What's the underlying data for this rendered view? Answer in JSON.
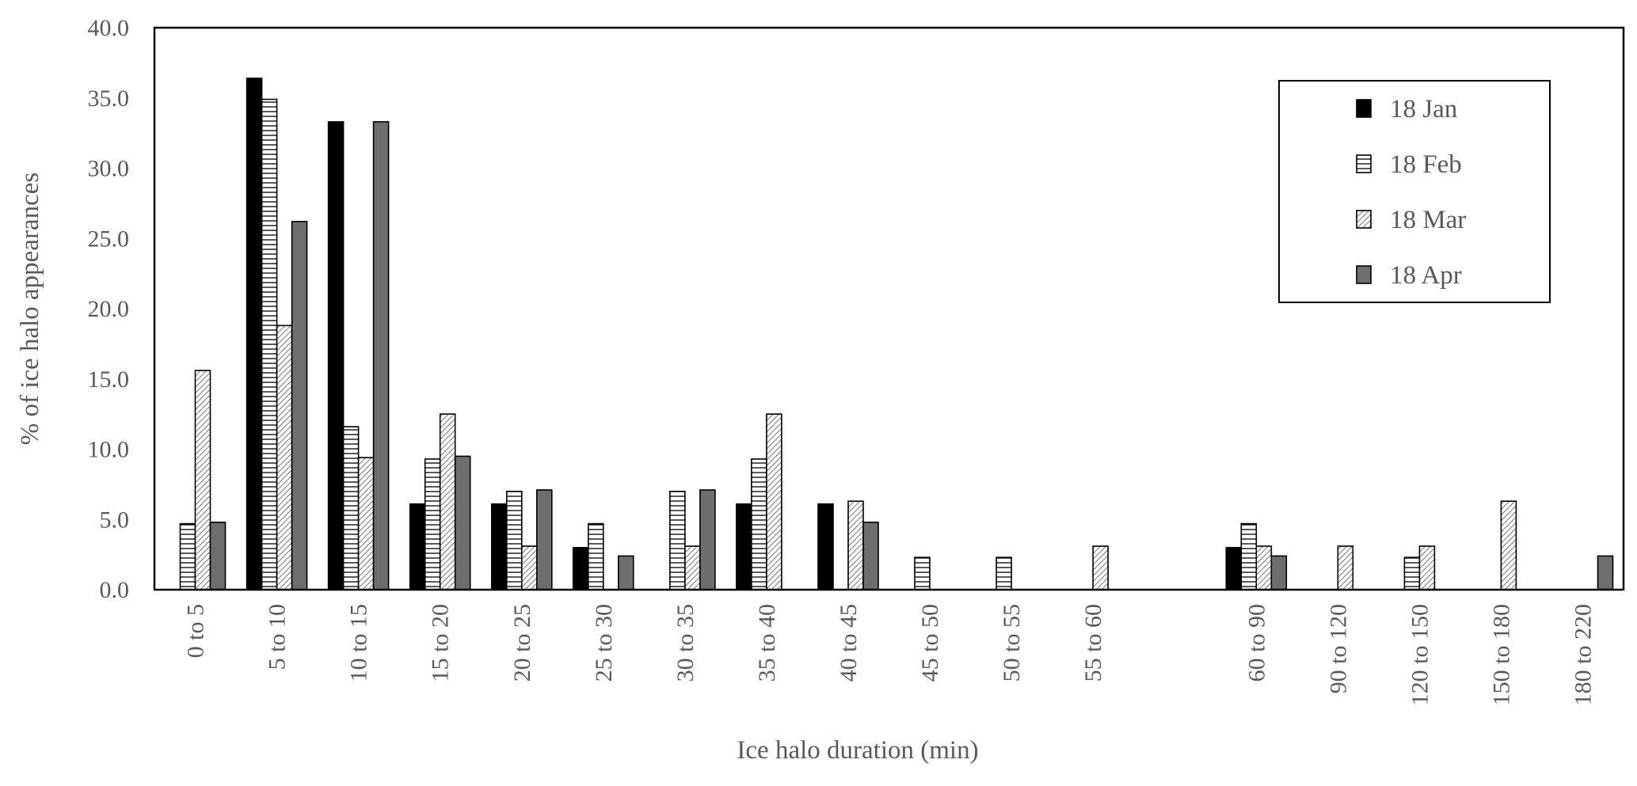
{
  "chart_data": {
    "type": "bar",
    "title": "",
    "xlabel": "Ice halo duration (min)",
    "ylabel": "% of ice halo appearances",
    "ylim": [
      0,
      40
    ],
    "ytick_labels": [
      "0.0",
      "5.0",
      "10.0",
      "15.0",
      "20.0",
      "25.0",
      "30.0",
      "35.0",
      "40.0"
    ],
    "grid": false,
    "legend_position": "top-right",
    "categories": [
      "0 to 5",
      "5 to 10",
      "10 to 15",
      "15 to 20",
      "20 to 25",
      "25 to 30",
      "30 to 35",
      "35 to 40",
      "40 to 45",
      "45 to 50",
      "50 to 55",
      "55 to 60",
      "",
      "60 to 90",
      "90 to 120",
      "120 to 150",
      "150 to 180",
      "180 to 220"
    ],
    "series": [
      {
        "name": "18 Jan",
        "pattern": "solid-black",
        "color": "#000000",
        "values": [
          0,
          36.4,
          33.3,
          6.1,
          6.1,
          3.0,
          0,
          6.1,
          6.1,
          0,
          0,
          0,
          0,
          3.0,
          0,
          0,
          0,
          0
        ]
      },
      {
        "name": "18 Feb",
        "pattern": "horizontal-lines",
        "color": "#ffffff",
        "values": [
          4.7,
          34.9,
          11.6,
          9.3,
          7.0,
          4.7,
          7.0,
          9.3,
          0,
          2.3,
          2.3,
          0,
          0,
          4.7,
          0,
          2.3,
          0,
          0
        ]
      },
      {
        "name": "18 Mar",
        "pattern": "diagonal-hatch",
        "color": "#ffffff",
        "values": [
          15.6,
          18.8,
          9.4,
          12.5,
          3.1,
          0,
          3.1,
          12.5,
          6.3,
          0,
          0,
          3.1,
          0,
          3.1,
          3.1,
          3.1,
          6.3,
          0
        ]
      },
      {
        "name": "18 Apr",
        "pattern": "solid-gray",
        "color": "#6e6e6e",
        "values": [
          4.8,
          26.2,
          33.3,
          9.5,
          7.1,
          2.4,
          7.1,
          0,
          4.8,
          0,
          0,
          0,
          0,
          2.4,
          0,
          0,
          0,
          2.4
        ]
      }
    ]
  }
}
